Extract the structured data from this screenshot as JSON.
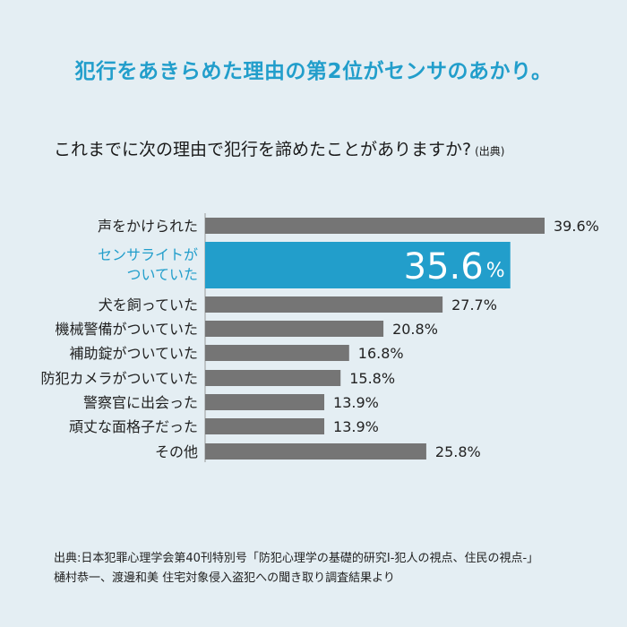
{
  "headline": "犯行をあきらめた理由の第2位がセンサのあかり。",
  "question": "これまでに次の理由で犯行を諦めたことがありますか?",
  "question_source": "(出典)",
  "colors": {
    "bar": "#757575",
    "highlight": "#229ecb",
    "background": "#e4eef3"
  },
  "chart_data": {
    "type": "bar",
    "orientation": "horizontal",
    "categories": [
      [
        "声をかけられた"
      ],
      [
        "センサライトが",
        "ついていた"
      ],
      [
        "犬を飼っていた"
      ],
      [
        "機械警備がついていた"
      ],
      [
        "補助錠がついていた"
      ],
      [
        "防犯カメラがついていた"
      ],
      [
        "警察官に出会った"
      ],
      [
        "頑丈な面格子だった"
      ],
      [
        "その他"
      ]
    ],
    "values": [
      39.6,
      35.6,
      27.7,
      20.8,
      16.8,
      15.8,
      13.9,
      13.9,
      25.8
    ],
    "value_labels": [
      "39.6%",
      "35.6",
      "27.7%",
      "20.8%",
      "16.8%",
      "15.8%",
      "13.9%",
      "13.9%",
      "25.8%"
    ],
    "highlight_index": 1,
    "highlight_unit": "%",
    "xlim": [
      0,
      40
    ]
  },
  "footer": {
    "line1": "出典:日本犯罪心理学会第40刊特別号「防犯心理学の基礎的研究I-犯人の視点、住民の視点-」",
    "line2": "樋村恭一、渡邊和美 住宅対象侵入盗犯への聞き取り調査結果より"
  }
}
